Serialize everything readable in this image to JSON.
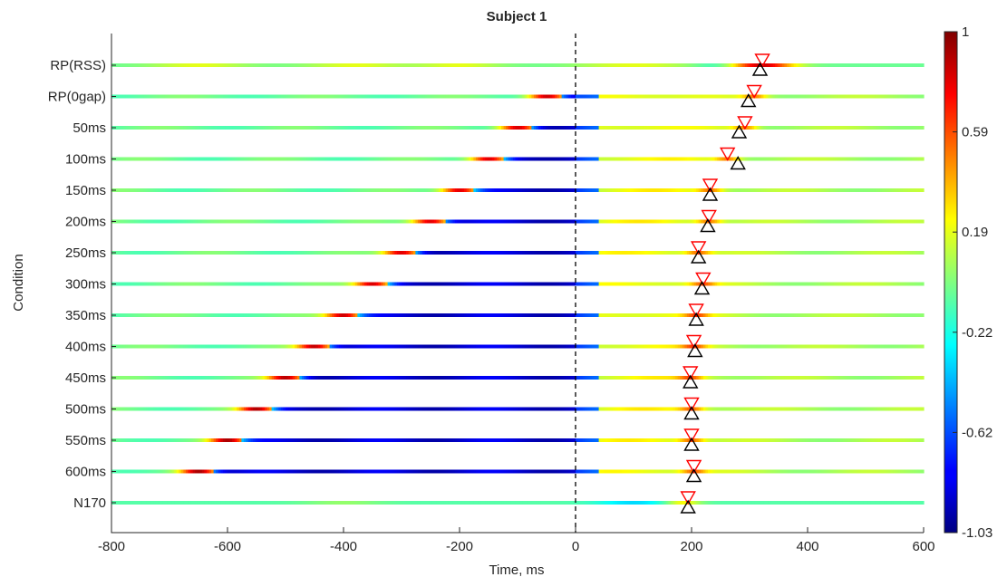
{
  "chart_data": {
    "type": "heatmap",
    "title": "Subject 1",
    "xlabel": "Time, ms",
    "ylabel": "Condition",
    "xlim": [
      -800,
      600
    ],
    "xticks": [
      -800,
      -600,
      -400,
      -200,
      0,
      200,
      400,
      600
    ],
    "zero_line_x": 0,
    "color_scale": {
      "name": "jet",
      "min": -1.03,
      "max": 1,
      "ticks": [
        "1",
        "0.59",
        "0.19",
        "-0.22",
        "-0.62",
        "-1.03"
      ]
    },
    "conditions": [
      {
        "label": "RP(RSS)",
        "peak_time": null,
        "red_marker": 322,
        "black_marker": 318
      },
      {
        "label": "RP(0gap)",
        "peak_time": -50,
        "red_marker": 308,
        "black_marker": 298
      },
      {
        "label": "50ms",
        "peak_time": -100,
        "red_marker": 292,
        "black_marker": 282
      },
      {
        "label": "100ms",
        "peak_time": -150,
        "red_marker": 262,
        "black_marker": 280
      },
      {
        "label": "150ms",
        "peak_time": -200,
        "red_marker": 232,
        "black_marker": 232
      },
      {
        "label": "200ms",
        "peak_time": -250,
        "red_marker": 230,
        "black_marker": 228
      },
      {
        "label": "250ms",
        "peak_time": -300,
        "red_marker": 212,
        "black_marker": 212
      },
      {
        "label": "300ms",
        "peak_time": -350,
        "red_marker": 220,
        "black_marker": 218
      },
      {
        "label": "350ms",
        "peak_time": -400,
        "red_marker": 208,
        "black_marker": 208
      },
      {
        "label": "400ms",
        "peak_time": -450,
        "red_marker": 204,
        "black_marker": 206
      },
      {
        "label": "450ms",
        "peak_time": -500,
        "red_marker": 198,
        "black_marker": 198
      },
      {
        "label": "500ms",
        "peak_time": -550,
        "red_marker": 200,
        "black_marker": 200
      },
      {
        "label": "550ms",
        "peak_time": -600,
        "red_marker": 200,
        "black_marker": 200
      },
      {
        "label": "600ms",
        "peak_time": -650,
        "red_marker": 204,
        "black_marker": 204
      },
      {
        "label": "N170",
        "peak_time": null,
        "red_marker": 194,
        "black_marker": 194
      }
    ]
  }
}
